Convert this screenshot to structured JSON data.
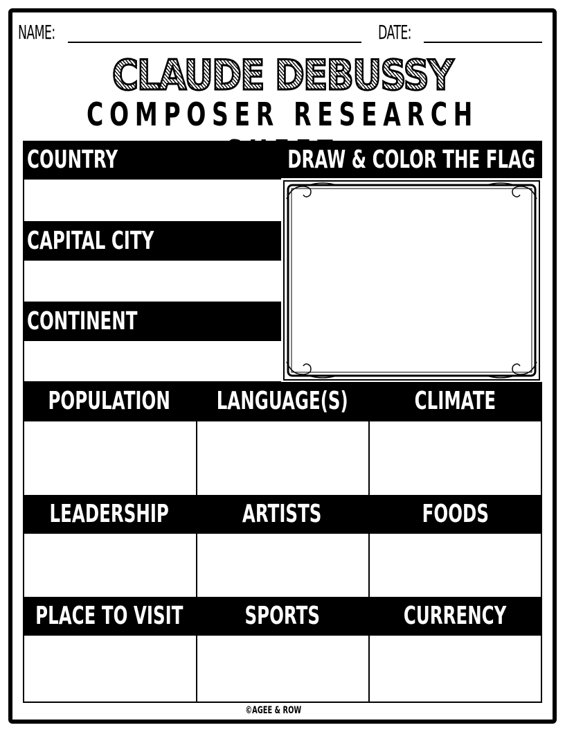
{
  "header": {
    "name_label": "NAME:",
    "date_label": "DATE:"
  },
  "title": "CLAUDE DEBUSSY",
  "subtitle": "COMPOSER RESEARCH SHEET",
  "sections": {
    "country": "COUNTRY",
    "capital_city": "CAPITAL CITY",
    "continent": "CONTINENT",
    "flag": "DRAW & COLOR THE FLAG",
    "population": "POPULATION",
    "languages": "LANGUAGE(S)",
    "climate": "CLIMATE",
    "leadership": "LEADERSHIP",
    "artists": "ARTISTS",
    "foods": "FOODS",
    "place_to_visit": "PLACE TO VISIT",
    "sports": "SPORTS",
    "currency": "CURRENCY"
  },
  "footer": "©AGEE & ROW"
}
